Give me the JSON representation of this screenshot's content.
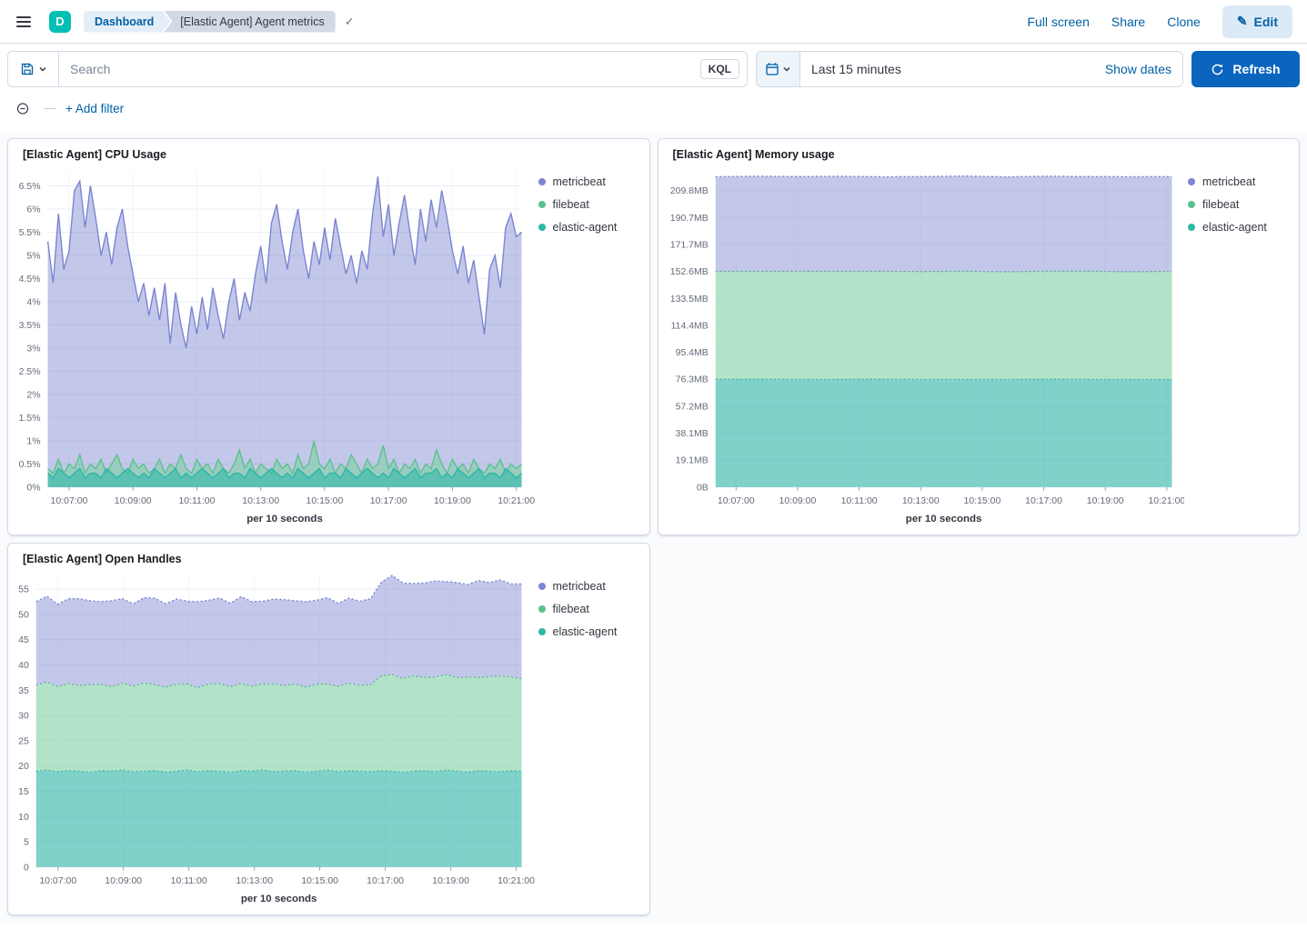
{
  "header": {
    "logo_letter": "D",
    "breadcrumb_root": "Dashboard",
    "breadcrumb_current": "[Elastic Agent] Agent metrics",
    "action_full_screen": "Full screen",
    "action_share": "Share",
    "action_clone": "Clone",
    "edit_label": "Edit"
  },
  "query_bar": {
    "search_placeholder": "Search",
    "kql_label": "KQL",
    "time_range_value": "Last 15 minutes",
    "show_dates_label": "Show dates",
    "refresh_label": "Refresh"
  },
  "filter_bar": {
    "add_filter_label": "+ Add filter"
  },
  "colors": {
    "primary_button": "#0B64BD",
    "link": "#0061A6",
    "panel_border": "#D3DAE6",
    "metricbeat": "#7B85D1",
    "filebeat": "#5BC28F",
    "elastic_agent": "#2EB8A6"
  },
  "chart_data": [
    {
      "type": "area",
      "stacked": false,
      "dotted_line": false,
      "title": "[Elastic Agent] CPU Usage",
      "xlabel": "per 10 seconds",
      "legend_position": "right",
      "x_start": "10:06:20",
      "x_end": "10:21:10",
      "x_ticks": [
        "10:07:00",
        "10:09:00",
        "10:11:00",
        "10:13:00",
        "10:15:00",
        "10:17:00",
        "10:19:00",
        "10:21:00"
      ],
      "y_tick_values": [
        0,
        0.5,
        1,
        1.5,
        2,
        2.5,
        3,
        3.5,
        4,
        4.5,
        5,
        5.5,
        6,
        6.5
      ],
      "y_tick_labels": [
        "0%",
        "0.5%",
        "1%",
        "1.5%",
        "2%",
        "2.5%",
        "3%",
        "3.5%",
        "4%",
        "4.5%",
        "5%",
        "5.5%",
        "6%",
        "6.5%"
      ],
      "ylim": [
        0,
        6.8
      ],
      "series": [
        {
          "name": "metricbeat",
          "color": "#7B85D1",
          "fill": "rgba(123,133,209,0.45)",
          "values": [
            5.3,
            4.4,
            5.9,
            4.7,
            5.1,
            6.4,
            6.6,
            5.6,
            6.5,
            5.8,
            5.0,
            5.5,
            4.8,
            5.6,
            6.0,
            5.2,
            4.6,
            4.0,
            4.4,
            3.7,
            4.3,
            3.6,
            4.4,
            3.1,
            4.2,
            3.5,
            3.0,
            3.9,
            3.3,
            4.1,
            3.4,
            4.3,
            3.7,
            3.2,
            4.0,
            4.5,
            3.6,
            4.2,
            3.8,
            4.6,
            5.2,
            4.4,
            5.7,
            6.1,
            5.3,
            4.7,
            5.5,
            6.0,
            5.1,
            4.5,
            5.3,
            4.8,
            5.6,
            4.9,
            5.8,
            5.2,
            4.6,
            5.0,
            4.4,
            5.1,
            4.7,
            5.9,
            6.7,
            5.4,
            6.1,
            5.0,
            5.7,
            6.3,
            5.5,
            4.8,
            6.0,
            5.3,
            6.2,
            5.6,
            6.4,
            5.8,
            5.1,
            4.6,
            5.2,
            4.4,
            4.9,
            4.1,
            3.3,
            4.7,
            5.0,
            4.3,
            5.6,
            5.9,
            5.4,
            5.5
          ]
        },
        {
          "name": "filebeat",
          "color": "#5BC28F",
          "fill": "rgba(126,208,164,0.6)",
          "values": [
            0.4,
            0.3,
            0.6,
            0.3,
            0.5,
            0.4,
            0.7,
            0.3,
            0.5,
            0.4,
            0.6,
            0.3,
            0.5,
            0.7,
            0.4,
            0.3,
            0.6,
            0.4,
            0.5,
            0.3,
            0.4,
            0.6,
            0.3,
            0.5,
            0.4,
            0.7,
            0.4,
            0.3,
            0.6,
            0.4,
            0.5,
            0.3,
            0.6,
            0.4,
            0.3,
            0.5,
            0.8,
            0.4,
            0.6,
            0.3,
            0.5,
            0.4,
            0.3,
            0.6,
            0.4,
            0.5,
            0.3,
            0.7,
            0.4,
            0.5,
            1.0,
            0.5,
            0.4,
            0.6,
            0.3,
            0.5,
            0.4,
            0.7,
            0.5,
            0.3,
            0.6,
            0.4,
            0.5,
            0.9,
            0.4,
            0.6,
            0.3,
            0.5,
            0.4,
            0.6,
            0.3,
            0.5,
            0.4,
            0.8,
            0.5,
            0.3,
            0.6,
            0.4,
            0.5,
            0.3,
            0.6,
            0.4,
            0.3,
            0.5,
            0.4,
            0.6,
            0.3,
            0.5,
            0.4,
            0.5
          ]
        },
        {
          "name": "elastic-agent",
          "color": "#2EB8A6",
          "fill": "rgba(59,184,172,0.65)",
          "values": [
            0.3,
            0.2,
            0.4,
            0.3,
            0.2,
            0.3,
            0.4,
            0.2,
            0.3,
            0.3,
            0.2,
            0.4,
            0.3,
            0.2,
            0.3,
            0.4,
            0.3,
            0.2,
            0.3,
            0.2,
            0.4,
            0.3,
            0.2,
            0.3,
            0.4,
            0.2,
            0.3,
            0.2,
            0.3,
            0.4,
            0.3,
            0.2,
            0.3,
            0.4,
            0.2,
            0.3,
            0.3,
            0.2,
            0.4,
            0.3,
            0.2,
            0.3,
            0.4,
            0.3,
            0.2,
            0.3,
            0.2,
            0.4,
            0.3,
            0.2,
            0.3,
            0.4,
            0.2,
            0.3,
            0.3,
            0.2,
            0.4,
            0.3,
            0.2,
            0.3,
            0.4,
            0.3,
            0.2,
            0.3,
            0.2,
            0.4,
            0.3,
            0.2,
            0.3,
            0.4,
            0.2,
            0.3,
            0.3,
            0.4,
            0.2,
            0.3,
            0.2,
            0.4,
            0.3,
            0.2,
            0.3,
            0.4,
            0.2,
            0.3,
            0.3,
            0.2,
            0.4,
            0.3,
            0.2,
            0.3
          ]
        }
      ]
    },
    {
      "type": "area",
      "stacked": true,
      "dotted_line": true,
      "title": "[Elastic Agent] Memory usage",
      "xlabel": "per 10 seconds",
      "legend_position": "right",
      "x_start": "10:06:20",
      "x_end": "10:21:10",
      "x_ticks": [
        "10:07:00",
        "10:09:00",
        "10:11:00",
        "10:13:00",
        "10:15:00",
        "10:17:00",
        "10:19:00",
        "10:21:00"
      ],
      "y_tick_values": [
        0,
        19.1,
        38.1,
        57.2,
        76.3,
        95.4,
        114.4,
        133.5,
        152.6,
        171.7,
        190.7,
        209.8
      ],
      "y_tick_labels": [
        "0B",
        "19.1MB",
        "38.1MB",
        "57.2MB",
        "76.3MB",
        "95.4MB",
        "114.4MB",
        "133.5MB",
        "152.6MB",
        "171.7MB",
        "190.7MB",
        "209.8MB"
      ],
      "ylim": [
        0,
        223
      ],
      "series": [
        {
          "name": "metricbeat",
          "color": "#7B85D1",
          "fill": "rgba(123,133,209,0.45)",
          "values": [
            67.0,
            67.4,
            67.1,
            67.3,
            67.0,
            67.2,
            67.4,
            67.1,
            67.3,
            67.0,
            67.2,
            67.1
          ]
        },
        {
          "name": "filebeat",
          "color": "#5BC28F",
          "fill": "rgba(126,208,164,0.6)",
          "values": [
            76.3,
            76.2,
            76.4,
            76.3,
            76.2,
            76.3,
            76.4,
            76.2,
            76.3,
            76.4,
            76.2,
            76.3
          ]
        },
        {
          "name": "elastic-agent",
          "color": "#2EB8A6",
          "fill": "rgba(59,184,172,0.65)",
          "values": [
            76.3,
            76.4,
            76.2,
            76.3,
            76.4,
            76.2,
            76.3,
            76.2,
            76.4,
            76.3,
            76.2,
            76.3
          ]
        }
      ]
    },
    {
      "type": "area",
      "stacked": true,
      "dotted_line": true,
      "title": "[Elastic Agent] Open Handles",
      "xlabel": "per 10 seconds",
      "legend_position": "right",
      "x_start": "10:06:20",
      "x_end": "10:21:10",
      "x_ticks": [
        "10:07:00",
        "10:09:00",
        "10:11:00",
        "10:13:00",
        "10:15:00",
        "10:17:00",
        "10:19:00",
        "10:21:00"
      ],
      "y_tick_values": [
        0,
        5,
        10,
        15,
        20,
        25,
        30,
        35,
        40,
        45,
        50,
        55
      ],
      "y_tick_labels": [
        "0",
        "5",
        "10",
        "15",
        "20",
        "25",
        "30",
        "35",
        "40",
        "45",
        "50",
        "55"
      ],
      "ylim": [
        0,
        57.5
      ],
      "series": [
        {
          "name": "metricbeat",
          "color": "#7B85D1",
          "fill": "rgba(123,133,209,0.45)",
          "values": [
            16.5,
            17.0,
            16.3,
            16.8,
            17.2,
            16.6,
            16.4,
            17.0,
            16.7,
            16.3,
            16.9,
            17.1,
            16.5,
            16.8,
            16.4,
            17.0,
            16.6,
            16.9,
            16.5,
            17.2,
            16.7,
            16.4,
            16.8,
            17.0,
            16.5,
            16.9,
            16.6,
            17.1,
            16.4,
            16.8,
            16.6,
            17.0,
            18.6,
            19.6,
            18.9,
            18.3,
            18.7,
            19.0,
            18.4,
            18.8,
            18.3,
            19.2,
            18.6,
            19.0,
            18.4,
            18.7
          ]
        },
        {
          "name": "filebeat",
          "color": "#5BC28F",
          "fill": "rgba(126,208,164,0.6)",
          "values": [
            17.0,
            17.4,
            16.8,
            17.2,
            16.9,
            17.3,
            17.0,
            16.7,
            17.2,
            16.9,
            17.4,
            17.0,
            16.8,
            17.2,
            17.0,
            16.6,
            17.1,
            17.3,
            16.9,
            17.2,
            16.8,
            17.0,
            17.3,
            16.9,
            17.1,
            16.8,
            17.2,
            17.0,
            16.9,
            17.3,
            17.0,
            17.2,
            18.7,
            19.1,
            18.5,
            18.8,
            18.4,
            18.7,
            18.9,
            18.5,
            18.8,
            18.4,
            18.7,
            18.9,
            18.5,
            18.3
          ]
        },
        {
          "name": "elastic-agent",
          "color": "#2EB8A6",
          "fill": "rgba(59,184,172,0.65)",
          "values": [
            19.0,
            19.2,
            18.9,
            19.1,
            19.0,
            18.8,
            19.1,
            19.0,
            19.2,
            18.9,
            19.0,
            19.1,
            18.8,
            19.0,
            19.2,
            18.9,
            19.1,
            19.0,
            18.8,
            19.1,
            19.0,
            19.2,
            18.9,
            19.0,
            19.1,
            18.8,
            19.0,
            19.2,
            18.9,
            19.1,
            19.0,
            18.9,
            19.1,
            19.0,
            18.8,
            19.0,
            19.1,
            18.9,
            19.2,
            19.0,
            18.8,
            19.1,
            19.0,
            18.9,
            19.1,
            19.0
          ]
        }
      ]
    }
  ]
}
